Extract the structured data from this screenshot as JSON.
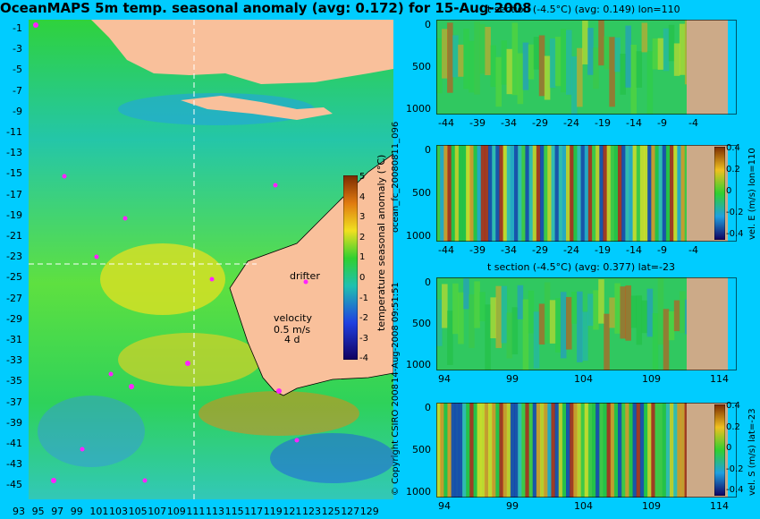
{
  "header": {
    "title": "OceanMAPS 5m temp. seasonal anomaly (avg: 0.172) for 15-Aug-2008"
  },
  "side_labels": {
    "forecast_id": "ocean_fc_20080811_096",
    "timestamp": "14-Aug-2008 09:51:51",
    "copyright": "© Copyright CSIRO 2008"
  },
  "map": {
    "drifter_label": "drifter",
    "velocity_label": "velocity",
    "velocity_speed": "0.5 m/s",
    "velocity_time": "4 d",
    "colorbar_label": "temperature seasonal anomaly (°C)",
    "colorbar_ticks": [
      "5",
      "4",
      "3",
      "2",
      "1",
      "0",
      "-1",
      "-2",
      "-3",
      "-4"
    ],
    "lat_ticks": [
      "-1",
      "-3",
      "-5",
      "-7",
      "-9",
      "-11",
      "-13",
      "-15",
      "-17",
      "-19",
      "-21",
      "-23",
      "-25",
      "-27",
      "-29",
      "-31",
      "-33",
      "-35",
      "-37",
      "-39",
      "-41",
      "-43",
      "-45"
    ],
    "lon_ticks": [
      "93",
      "95",
      "97",
      "99",
      "101",
      "103",
      "105",
      "107",
      "109",
      "111",
      "113",
      "115",
      "117",
      "119",
      "121",
      "123",
      "125",
      "127",
      "129"
    ],
    "colors": {
      "land": "#f9c09b",
      "ocean_base": "#22c83a",
      "drifter": "#ff22ff"
    }
  },
  "sections": [
    {
      "id": "t-lon",
      "title": "t section (-4.5°C) (avg: 0.149) lon=110",
      "x_ticks": [
        "-44",
        "-39",
        "-34",
        "-29",
        "-24",
        "-19",
        "-14",
        "-9",
        "-4"
      ],
      "y_ticks": [
        "0",
        "500",
        "1000"
      ],
      "right_label": ""
    },
    {
      "id": "u-lon",
      "title": "",
      "x_ticks": [
        "-44",
        "-39",
        "-34",
        "-29",
        "-24",
        "-19",
        "-14",
        "-9",
        "-4"
      ],
      "y_ticks": [
        "0",
        "500",
        "1000"
      ],
      "right_label": "vel. E (m/s) lon=110",
      "colorbar_ticks": [
        "0.4",
        "0.2",
        "0",
        "-0.2",
        "-0.4"
      ]
    },
    {
      "id": "t-lat",
      "title": "t section (-4.5°C) (avg: 0.377) lat=-23",
      "x_ticks": [
        "94",
        "99",
        "104",
        "109",
        "114"
      ],
      "y_ticks": [
        "0",
        "500",
        "1000"
      ],
      "right_label": ""
    },
    {
      "id": "v-lat",
      "title": "",
      "x_ticks": [
        "94",
        "99",
        "104",
        "109",
        "114"
      ],
      "y_ticks": [
        "0",
        "500",
        "1000"
      ],
      "right_label": "vel. S (m/s) lat=-23",
      "colorbar_ticks": [
        "0.4",
        "0.2",
        "0",
        "-0.2",
        "-0.4"
      ]
    }
  ],
  "chart_data": {
    "type": "heatmap",
    "title": "OceanMAPS 5m temp. seasonal anomaly (avg: 0.172) for 15-Aug-2008",
    "xlabel": "",
    "ylabel": "",
    "x_range": [
      93,
      130
    ],
    "y_range": [
      -45,
      0
    ],
    "colorbar_range": [
      -4,
      5
    ],
    "section_depth_range": [
      0,
      1000
    ]
  }
}
